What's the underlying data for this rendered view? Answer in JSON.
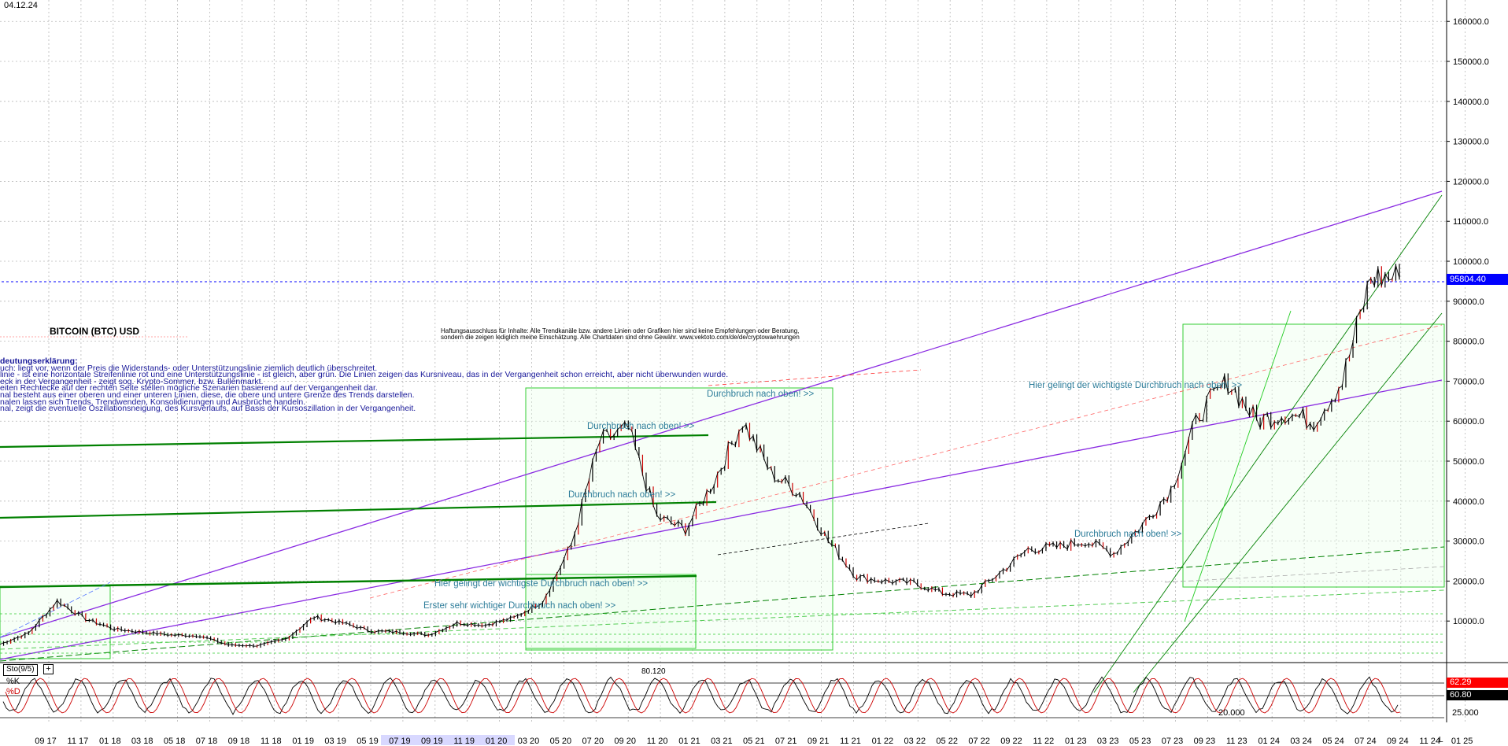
{
  "header": {
    "date": "04.12.24",
    "title": "BITCOIN (BTC) USD"
  },
  "colors": {
    "candle": "#000000",
    "grid": "#b8b8b8",
    "channel": "#8a2be2",
    "trend": "#008000",
    "annot": "#2e7d9a",
    "legend_text": "#1a1a9a",
    "last_price_bg": "#0000ff",
    "k_line": "#000000",
    "d_line": "#cc0000"
  },
  "disclaimer": [
    "Haftungsausschluss für Inhalte: Alle Trendkanäle bzw. andere Linien oder Grafiken hier sind keine Empfehlungen oder Beratung,",
    "sondern die zeigen lediglich meine Einschätzung. Alle Chartdaten sind ohne Gewähr. www.vektoto.com/de/de/cryptowaehrungen"
  ],
  "legend": [
    "deutungserklärung:",
    "uch: liegt vor, wenn der Preis die Widerstands- oder Unterstützungslinie ziemlich deutlich überschreitet.",
    "linie - ist eine horizontale Streifenlinie rot und eine Unterstützungslinie - ist gleich, aber grün. Die Linien zeigen das Kursniveau, das in der Vergangenheit schon erreicht, aber nicht überwunden wurde.",
    "eck in der Vergangenheit - zeigt sog. Krypto-Sommer, bzw. Bullenmarkt.",
    "eiten Rechtecke auf der rechten Seite stellen mögliche Szenarien basierend auf der Vergangenheit dar.",
    "nal besteht aus einer oberen und einer unteren Linien, diese, die obere und untere Grenze des Trends darstellen.",
    "nalen lassen sich Trends, Trendwenden, Konsolidierungen und Ausbrüche handeln.",
    "nal, zeigt die eventuelle Oszillationsneigung, des Kursverlaufs, auf Basis der Kursoszillation in der Vergangenheit."
  ],
  "annotations": [
    "Durchbruch nach oben! >>",
    "Durchbruch nach oben! >>",
    "Durchbruch nach oben! >>",
    "Hier gelingt der wichtigste Durchbruch nach oben! >>",
    "Erster sehr wichtiger Durchbruch nach oben! >>",
    "Durchbruch nach oben! >>",
    "Hier gelingt der wichtigste Durchbruch nach oben! >>"
  ],
  "last_price_label": "95804.40",
  "indicator": {
    "name": "Sto(9/5)",
    "k_label": "%K",
    "d_label": "%D",
    "k_value": "62.29",
    "d_value": "60.80",
    "levels": [
      "20.000",
      "25.000"
    ],
    "top_label": "80.120"
  },
  "bottom_right": "L",
  "chart_data": {
    "type": "line",
    "title": "BITCOIN (BTC) USD",
    "x_tick_labels": [
      "09 17",
      "11 17",
      "01 18",
      "03 18",
      "05 18",
      "07 18",
      "09 18",
      "11 18",
      "01 19",
      "03 19",
      "05 19",
      "07 19",
      "09 19",
      "11 19",
      "01 20",
      "03 20",
      "05 20",
      "07 20",
      "09 20",
      "11 20",
      "01 21",
      "03 21",
      "05 21",
      "07 21",
      "09 21",
      "11 21",
      "01 22",
      "03 22",
      "05 22",
      "07 22",
      "09 22",
      "11 22",
      "01 23",
      "03 23",
      "05 23",
      "07 23",
      "09 23",
      "11 23",
      "01 24",
      "03 24",
      "05 24",
      "07 24",
      "09 24",
      "11 24",
      "01 25"
    ],
    "y_tick_labels": [
      "160000.0",
      "150000.0",
      "140000.0",
      "130000.0",
      "120000.0",
      "110000.0",
      "100000.0",
      "90000.0",
      "80000.0",
      "70000.0",
      "60000.0",
      "50000.0",
      "40000.0",
      "30000.0",
      "20000.0",
      "10000.0"
    ],
    "ylim": [
      0,
      163000
    ],
    "grid": true,
    "series": [
      {
        "values": [
          4200,
          7000,
          15000,
          10500,
          8000,
          7200,
          6500,
          6300,
          4000,
          3800,
          5500,
          11000,
          9500,
          7500,
          7200,
          6500,
          9500,
          9000,
          10800,
          15000,
          29000,
          55000,
          58000,
          36000,
          33000,
          45000,
          60000,
          47000,
          42000,
          30000,
          21000,
          20000,
          19500,
          17000,
          16500,
          22000,
          28000,
          28500,
          30000,
          27000,
          34000,
          43000,
          62000,
          70000,
          60000,
          62000,
          60000,
          70000,
          96000,
          95804.4
        ]
      }
    ]
  }
}
